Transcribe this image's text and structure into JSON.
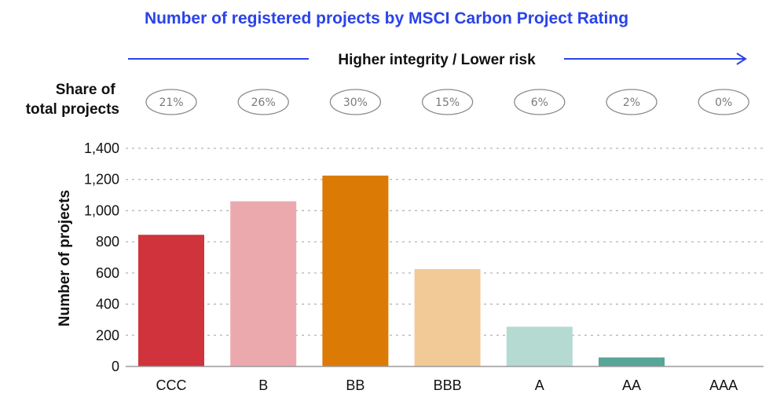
{
  "colors": {
    "title": "#2a43e8",
    "arrow": "#2a43e8",
    "grid": "#b4b4b4",
    "axis": "#9a9a9a",
    "pill_border": "#8a8a8a"
  },
  "chart_data": {
    "type": "bar",
    "title": "Number of registered projects by MSCI Carbon Project Rating",
    "arrow_label": "Higher integrity / Lower risk",
    "share_heading": [
      "Share of",
      "total projects"
    ],
    "ylabel": "Number of projects",
    "xlabel": "",
    "categories": [
      "CCC",
      "B",
      "BB",
      "BBB",
      "A",
      "AA",
      "AAA"
    ],
    "values": [
      845,
      1060,
      1225,
      625,
      255,
      58,
      0
    ],
    "shares": [
      "21%",
      "26%",
      "30%",
      "15%",
      "6%",
      "2%",
      "0%"
    ],
    "bar_colors": [
      "#d0333b",
      "#eba9ae",
      "#db7b06",
      "#f2ca98",
      "#b4dad2",
      "#57a697",
      "#57a697"
    ],
    "ylim": [
      0,
      1400
    ],
    "yticks": [
      0,
      200,
      400,
      600,
      800,
      1000,
      1200,
      1400
    ],
    "ytick_labels": [
      "0",
      "200",
      "400",
      "600",
      "800",
      "1,000",
      "1,200",
      "1,400"
    ],
    "grid": true,
    "legend": "none"
  }
}
